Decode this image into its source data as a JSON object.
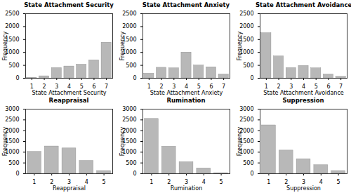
{
  "chart_data": [
    {
      "type": "bar",
      "title": "State Attachment Security",
      "xlabel": "State Attachment Security",
      "ylabel": "Frequency",
      "x": [
        1,
        2,
        3,
        4,
        5,
        6,
        7
      ],
      "values": [
        20,
        80,
        400,
        460,
        530,
        700,
        1380
      ],
      "color": "#b8b8b8",
      "xlim": [
        0.5,
        7.5
      ],
      "xticks": [
        1,
        2,
        3,
        4,
        5,
        6,
        7
      ],
      "ylim": [
        0,
        2500
      ],
      "yticks": [
        0,
        500,
        1000,
        1500,
        2000,
        2500
      ],
      "grid": false
    },
    {
      "type": "bar",
      "title": "State Attachment Anxiety",
      "xlabel": "State Attachment Anxiety",
      "ylabel": "Frequency",
      "x": [
        1,
        2,
        3,
        4,
        5,
        6,
        7
      ],
      "values": [
        180,
        410,
        390,
        1000,
        500,
        430,
        150
      ],
      "color": "#b8b8b8",
      "xlim": [
        0.5,
        7.5
      ],
      "xticks": [
        1,
        2,
        3,
        4,
        5,
        6,
        7
      ],
      "ylim": [
        0,
        2500
      ],
      "yticks": [
        0,
        500,
        1000,
        1500,
        2000,
        2500
      ],
      "grid": false
    },
    {
      "type": "bar",
      "title": "State Attachment Avoidance",
      "xlabel": "State Attachment Avoidance",
      "ylabel": "Frequency",
      "x": [
        1,
        2,
        3,
        4,
        5,
        6,
        7
      ],
      "values": [
        1750,
        850,
        400,
        480,
        390,
        150,
        60
      ],
      "color": "#b8b8b8",
      "xlim": [
        0.5,
        7.5
      ],
      "xticks": [
        1,
        2,
        3,
        4,
        5,
        6,
        7
      ],
      "ylim": [
        0,
        2500
      ],
      "yticks": [
        0,
        500,
        1000,
        1500,
        2000,
        2500
      ],
      "grid": false
    },
    {
      "type": "bar",
      "title": "Reappraisal",
      "xlabel": "Reappraisal",
      "ylabel": "Frequency",
      "x": [
        1,
        2,
        3,
        4,
        5
      ],
      "values": [
        1020,
        1270,
        1180,
        600,
        130
      ],
      "color": "#b8b8b8",
      "xlim": [
        0.5,
        5.5
      ],
      "xticks": [
        1,
        2,
        3,
        4,
        5
      ],
      "ylim": [
        0,
        3000
      ],
      "yticks": [
        0,
        500,
        1000,
        1500,
        2000,
        2500,
        3000
      ],
      "grid": false
    },
    {
      "type": "bar",
      "title": "Rumination",
      "xlabel": "Rumination",
      "ylabel": "Frequency",
      "x": [
        1,
        2,
        3,
        4,
        5
      ],
      "values": [
        2550,
        1260,
        540,
        250,
        30
      ],
      "color": "#b8b8b8",
      "xlim": [
        0.5,
        5.5
      ],
      "xticks": [
        1,
        2,
        3,
        4,
        5
      ],
      "ylim": [
        0,
        3000
      ],
      "yticks": [
        0,
        500,
        1000,
        1500,
        2000,
        2500,
        3000
      ],
      "grid": false
    },
    {
      "type": "bar",
      "title": "Suppression",
      "xlabel": "Suppression",
      "ylabel": "Frequency",
      "x": [
        1,
        2,
        3,
        4,
        5
      ],
      "values": [
        2250,
        1080,
        680,
        400,
        130
      ],
      "color": "#b8b8b8",
      "xlim": [
        0.5,
        5.5
      ],
      "xticks": [
        1,
        2,
        3,
        4,
        5
      ],
      "ylim": [
        0,
        3000
      ],
      "yticks": [
        0,
        500,
        1000,
        1500,
        2000,
        2500,
        3000
      ],
      "grid": false
    }
  ]
}
